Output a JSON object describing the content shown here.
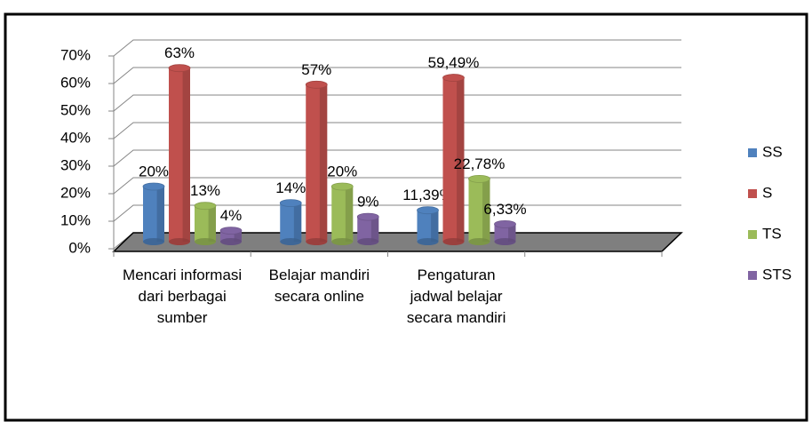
{
  "chart_data": {
    "type": "bar3d",
    "categories": [
      "Mencari informasi dari berbagai sumber",
      "Belajar mandiri secara online",
      "Pengaturan jadwal belajar secara mandiri",
      null
    ],
    "series": [
      {
        "name": "SS",
        "color": "#4f81bd",
        "values": [
          20,
          14,
          11.39,
          null
        ],
        "value_labels": [
          "20%",
          "14%",
          "11,39%",
          null
        ]
      },
      {
        "name": "S",
        "color": "#c0504d",
        "values": [
          63,
          57,
          59.49,
          null
        ],
        "value_labels": [
          "63%",
          "57%",
          "59,49%",
          null
        ]
      },
      {
        "name": "TS",
        "color": "#9bbb59",
        "values": [
          13,
          20,
          22.78,
          null
        ],
        "value_labels": [
          "13%",
          "20%",
          "22,78%",
          null
        ]
      },
      {
        "name": "STS",
        "color": "#8064a2",
        "values": [
          4,
          9,
          6.33,
          null
        ],
        "value_labels": [
          "4%",
          "9%",
          "6,33%",
          null
        ]
      }
    ],
    "ylim": [
      0,
      70
    ],
    "yticks": [
      {
        "value": 0,
        "label": "0%"
      },
      {
        "value": 10,
        "label": "10%"
      },
      {
        "value": 20,
        "label": "20%"
      },
      {
        "value": 30,
        "label": "30%"
      },
      {
        "value": 40,
        "label": "40%"
      },
      {
        "value": 50,
        "label": "50%"
      },
      {
        "value": 60,
        "label": "60%"
      },
      {
        "value": 70,
        "label": "70%"
      }
    ],
    "grid": true,
    "legend": "right"
  }
}
